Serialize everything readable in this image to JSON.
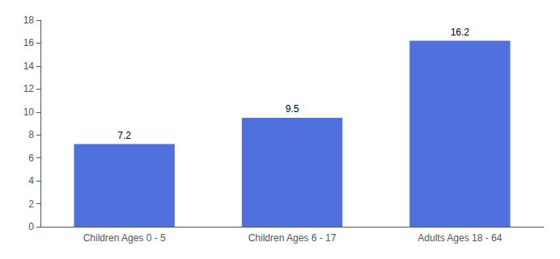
{
  "chart_data": {
    "type": "bar",
    "categories": [
      "Children Ages 0 - 5",
      "Children Ages 6 - 17",
      "Adults Ages 18 - 64"
    ],
    "values": [
      7.2,
      9.5,
      16.2
    ],
    "ylim": [
      0,
      18
    ],
    "yticks": [
      0,
      2,
      4,
      6,
      8,
      10,
      12,
      14,
      16,
      18
    ],
    "grid": false,
    "data_labels": true
  }
}
